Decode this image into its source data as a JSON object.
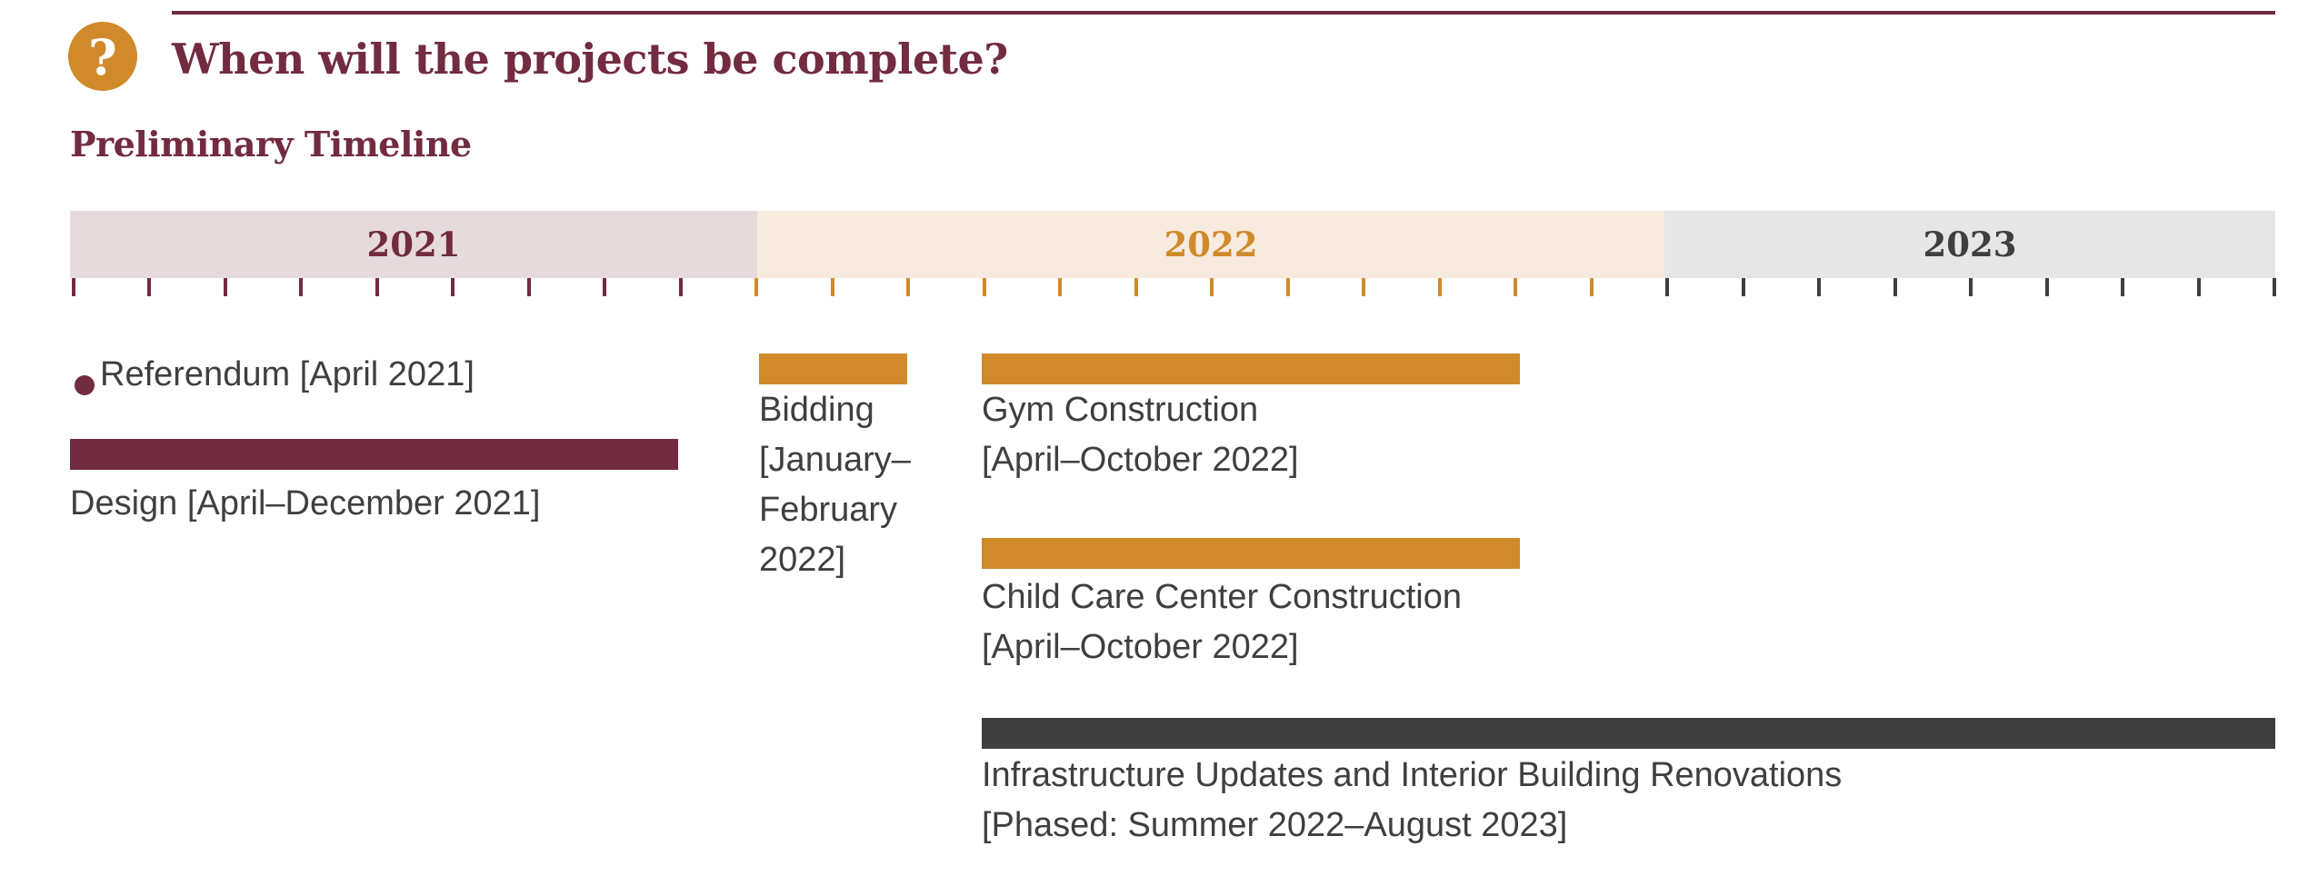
{
  "header": {
    "icon": "question-icon",
    "icon_glyph": "?",
    "title": "When will the projects be complete?",
    "subtitle": "Preliminary Timeline"
  },
  "colors": {
    "maroon": "#722b3f",
    "gold": "#d08a2a",
    "dark_gray": "#3f3f3f",
    "band_2021": "#e7dadd",
    "band_2022": "#f7ebdf",
    "band_2023": "#e6e6e7"
  },
  "timeline": {
    "years": [
      {
        "label": "2021",
        "color": "#722b3f",
        "band": "#e7dadd",
        "tick_color": "#722b3f"
      },
      {
        "label": "2022",
        "color": "#d08a2a",
        "band": "#f7ebdf",
        "tick_color": "#d08a2a"
      },
      {
        "label": "2023",
        "color": "#3f3f3f",
        "band": "#e6e6e7",
        "tick_color": "#3f3f3f"
      }
    ],
    "events": [
      {
        "type": "milestone",
        "label": "Referendum [April 2021]",
        "date": "2021-04",
        "color": "#722b3f"
      },
      {
        "type": "bar",
        "label_lines": [
          "Design [April–December 2021]"
        ],
        "start": "2021-04",
        "end": "2021-12",
        "color": "#722b3f"
      },
      {
        "type": "bar",
        "label_lines": [
          "Bidding",
          "[January–",
          "February",
          "2022]"
        ],
        "start": "2022-01",
        "end": "2022-02",
        "color": "#d08a2a"
      },
      {
        "type": "bar",
        "label_lines": [
          "Gym Construction",
          "[April–October 2022]"
        ],
        "start": "2022-04",
        "end": "2022-10",
        "color": "#d08a2a"
      },
      {
        "type": "bar",
        "label_lines": [
          "Child Care Center Construction",
          "[April–October 2022]"
        ],
        "start": "2022-04",
        "end": "2022-10",
        "color": "#d08a2a"
      },
      {
        "type": "bar",
        "label_lines": [
          "Infrastructure Updates and Interior Building Renovations",
          "[Phased: Summer 2022–August 2023]"
        ],
        "start": "2022-04",
        "end": "2023-08",
        "color": "#3f3f3f"
      }
    ]
  }
}
